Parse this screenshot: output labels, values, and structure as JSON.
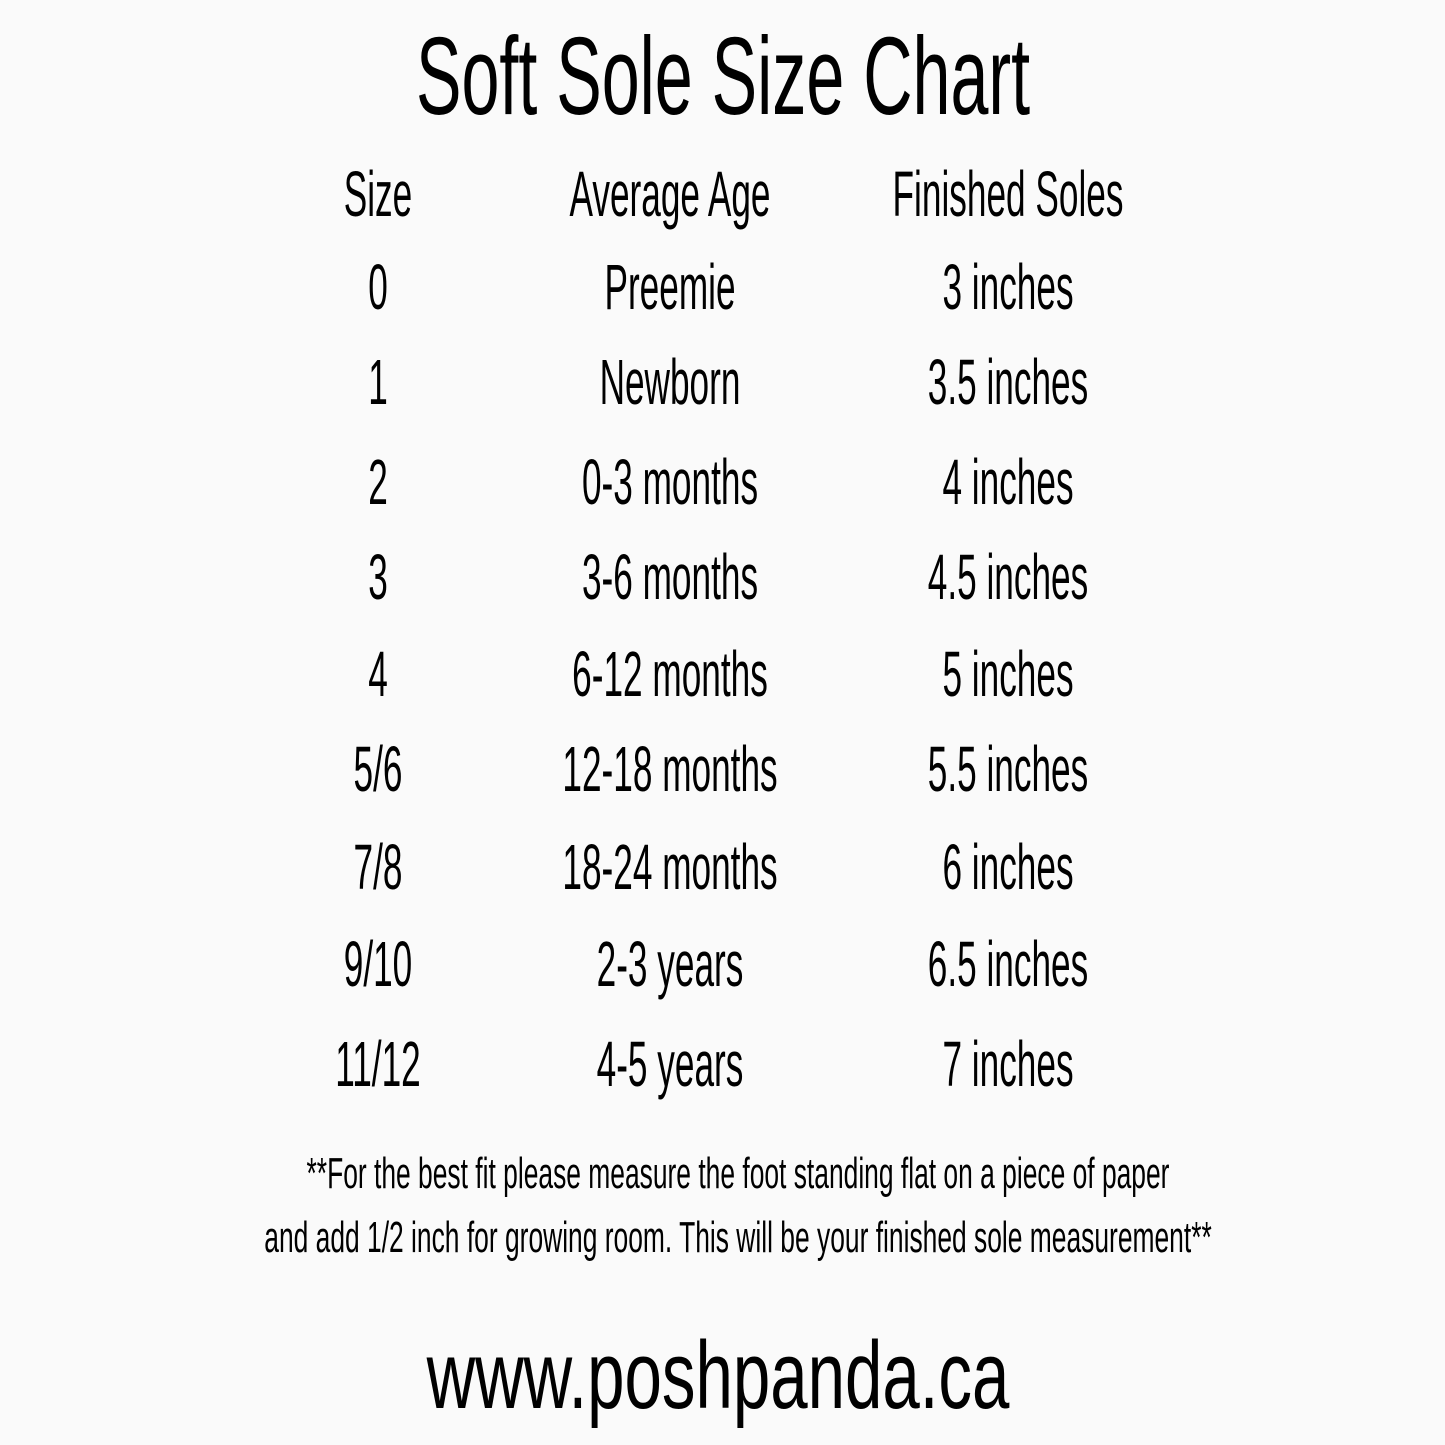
{
  "title": "Soft Sole Size Chart",
  "headers": [
    "Size",
    "Average Age",
    "Finished Soles"
  ],
  "rows": [
    [
      "0",
      "Preemie",
      "3 inches"
    ],
    [
      "1",
      "Newborn",
      "3.5 inches"
    ],
    [
      "2",
      "0-3 months",
      "4 inches"
    ],
    [
      "3",
      "3-6 months",
      "4.5 inches"
    ],
    [
      "4",
      "6-12 months",
      "5 inches"
    ],
    [
      "5/6",
      "12-18 months",
      "5.5 inches"
    ],
    [
      "7/8",
      "18-24 months",
      "6 inches"
    ],
    [
      "9/10",
      "2-3 years",
      "6.5 inches"
    ],
    [
      "11/12",
      "4-5 years",
      "7 inches"
    ]
  ],
  "note": [
    "**For the best fit please measure the foot standing flat on a piece of paper",
    "and add 1/2 inch for growing room. This will be your finished sole measurement**"
  ],
  "website": "www.poshpanda.ca"
}
